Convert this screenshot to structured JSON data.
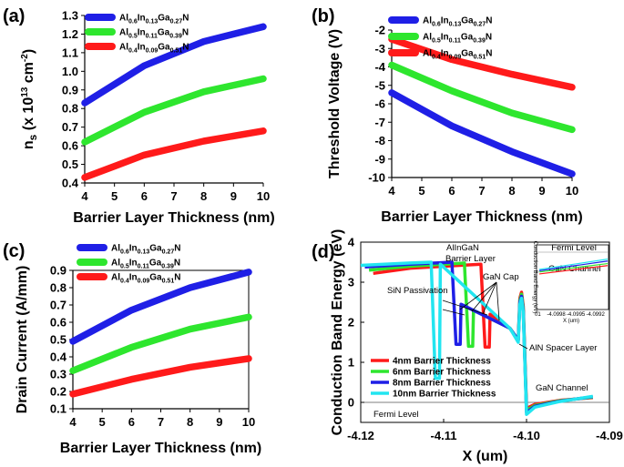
{
  "chart_data": [
    {
      "panel": "(a)",
      "type": "line",
      "xlabel": "Barrier Layer Thickness (nm)",
      "ylabel": "ns (x 10^13 cm^-2)",
      "ylabel_parts": {
        "a": "n",
        "sub": "s",
        "b": " (x 10",
        "sup": "13",
        "c": " cm",
        "sup2": "-2",
        "d": ")"
      },
      "x": [
        4,
        6,
        8,
        10
      ],
      "xlim": [
        4,
        10
      ],
      "ylim": [
        0.4,
        1.3
      ],
      "xticks": [
        "4",
        "5",
        "6",
        "7",
        "8",
        "9",
        "10"
      ],
      "yticks": [
        "0.4",
        "0.5",
        "0.6",
        "0.7",
        "0.8",
        "0.9",
        "1.0",
        "1.1",
        "1.2",
        "1.3"
      ],
      "series": [
        {
          "name": "Al0.6In0.13Ga0.27N",
          "label_parts": [
            "Al",
            "0.6",
            "In",
            "0.13",
            "Ga",
            "0.27",
            "N"
          ],
          "color": "#1f1fe6",
          "values": [
            0.83,
            1.03,
            1.16,
            1.24
          ]
        },
        {
          "name": "Al0.5In0.11Ga0.39N",
          "label_parts": [
            "Al",
            "0.5",
            "In",
            "0.11",
            "Ga",
            "0.39",
            "N"
          ],
          "color": "#2ee62e",
          "values": [
            0.62,
            0.78,
            0.89,
            0.96
          ]
        },
        {
          "name": "Al0.4In0.09Ga0.51N",
          "label_parts": [
            "Al",
            "0.4",
            "In",
            "0.09",
            "Ga",
            "0.51",
            "N"
          ],
          "color": "#ff1a1a",
          "values": [
            0.43,
            0.55,
            0.625,
            0.68
          ]
        }
      ]
    },
    {
      "panel": "(b)",
      "type": "line",
      "xlabel": "Barrier Layer Thickness (nm)",
      "ylabel": "Threshold Voltage (V)",
      "x": [
        4,
        6,
        8,
        10
      ],
      "xlim": [
        4,
        10
      ],
      "ylim": [
        -10,
        -2
      ],
      "xticks": [
        "4",
        "5",
        "6",
        "7",
        "8",
        "9",
        "10"
      ],
      "yticks": [
        "-10",
        "-9",
        "-8",
        "-7",
        "-6",
        "-5",
        "-4",
        "-3",
        "-2"
      ],
      "series": [
        {
          "name": "Al0.6In0.13Ga0.27N",
          "label_parts": [
            "Al",
            "0.6",
            "In",
            "0.13",
            "Ga",
            "0.27",
            "N"
          ],
          "color": "#1f1fe6",
          "values": [
            -5.4,
            -7.2,
            -8.6,
            -9.8
          ]
        },
        {
          "name": "Al0.5In0.11Ga0.39N",
          "label_parts": [
            "Al",
            "0.5",
            "In",
            "0.11",
            "Ga",
            "0.39",
            "N"
          ],
          "color": "#2ee62e",
          "values": [
            -3.9,
            -5.3,
            -6.5,
            -7.4
          ]
        },
        {
          "name": "Al0.4In0.09Ga0.51N",
          "label_parts": [
            "Al",
            "0.4",
            "In",
            "0.09",
            "Ga",
            "0.51",
            "N"
          ],
          "color": "#ff1a1a",
          "values": [
            -2.5,
            -3.6,
            -4.4,
            -5.1
          ]
        }
      ]
    },
    {
      "panel": "(c)",
      "type": "line",
      "xlabel": "Barrier Layer Thickness (nm)",
      "ylabel": "Drain Current (A/mm)",
      "x": [
        4,
        6,
        8,
        10
      ],
      "xlim": [
        4,
        10
      ],
      "ylim": [
        0.1,
        0.9
      ],
      "xticks": [
        "4",
        "5",
        "6",
        "7",
        "8",
        "9",
        "10"
      ],
      "yticks": [
        "0.1",
        "0.2",
        "0.3",
        "0.4",
        "0.5",
        "0.6",
        "0.7",
        "0.8",
        "0.9"
      ],
      "series": [
        {
          "name": "Al0.6In0.13Ga0.27N",
          "label_parts": [
            "Al",
            "0.6",
            "In",
            "0.13",
            "Ga",
            "0.27",
            "N"
          ],
          "color": "#1f1fe6",
          "values": [
            0.49,
            0.67,
            0.8,
            0.89
          ]
        },
        {
          "name": "Al0.5In0.11Ga0.39N",
          "label_parts": [
            "Al",
            "0.5",
            "In",
            "0.11",
            "Ga",
            "0.39",
            "N"
          ],
          "color": "#2ee62e",
          "values": [
            0.32,
            0.455,
            0.56,
            0.63
          ]
        },
        {
          "name": "Al0.4In0.09Ga0.51N",
          "label_parts": [
            "Al",
            "0.4",
            "In",
            "0.09",
            "Ga",
            "0.51",
            "N"
          ],
          "color": "#ff1a1a",
          "values": [
            0.185,
            0.27,
            0.34,
            0.39
          ]
        }
      ]
    },
    {
      "panel": "(d)",
      "type": "line",
      "xlabel": "X (um)",
      "ylabel": "Conduction Band Energy (eV)",
      "xlim": [
        -4.12,
        -4.09
      ],
      "ylim": [
        -0.5,
        4.0
      ],
      "xticks": [
        "-4.12",
        "-4.11",
        "-4.10",
        "-4.09"
      ],
      "xtick_values": [
        -4.12,
        -4.11,
        -4.1,
        -4.09
      ],
      "yticks": [
        "0",
        "1",
        "2",
        "3",
        "4"
      ],
      "series": [
        {
          "name": "4nm Barrier Thickness",
          "color": "#ff1a1a",
          "x": [
            -4.1185,
            -4.114,
            -4.1055,
            -4.105,
            -4.1045,
            -4.1044,
            -4.102,
            -4.101,
            -4.1008,
            -4.1006,
            -4.1004,
            -4.1,
            -4.099,
            -4.096,
            -4.092
          ],
          "y": [
            3.22,
            3.35,
            3.45,
            1.38,
            1.38,
            2.2,
            1.85,
            1.55,
            2.6,
            2.75,
            2.4,
            -0.15,
            -0.05,
            0.05,
            0.12
          ]
        },
        {
          "name": "6nm Barrier Thickness",
          "color": "#2ee62e",
          "x": [
            -4.119,
            -4.114,
            -4.1075,
            -4.107,
            -4.1065,
            -4.1064,
            -4.102,
            -4.101,
            -4.1008,
            -4.1006,
            -4.1004,
            -4.1,
            -4.099,
            -4.096,
            -4.092
          ],
          "y": [
            3.3,
            3.4,
            3.48,
            1.4,
            1.4,
            2.3,
            1.85,
            1.55,
            2.55,
            2.7,
            2.35,
            -0.2,
            -0.08,
            0.04,
            0.13
          ]
        },
        {
          "name": "8nm Barrier Thickness",
          "color": "#1f1fe6",
          "x": [
            -4.1195,
            -4.114,
            -4.109,
            -4.1085,
            -4.108,
            -4.1079,
            -4.102,
            -4.101,
            -4.1008,
            -4.1006,
            -4.1004,
            -4.1,
            -4.099,
            -4.096,
            -4.092
          ],
          "y": [
            3.38,
            3.45,
            3.5,
            1.45,
            1.45,
            2.45,
            1.85,
            1.55,
            2.5,
            2.65,
            2.3,
            -0.25,
            -0.1,
            0.03,
            0.14
          ]
        },
        {
          "name": "10nm Barrier Thickness",
          "color": "#22e5f0",
          "x": [
            -4.12,
            -4.114,
            -4.1115,
            -4.111,
            -4.1105,
            -4.1104,
            -4.102,
            -4.101,
            -4.1008,
            -4.1006,
            -4.1004,
            -4.1,
            -4.099,
            -4.096,
            -4.092
          ],
          "y": [
            3.42,
            3.48,
            3.5,
            0.6,
            0.6,
            3.45,
            1.85,
            1.5,
            2.45,
            2.6,
            2.25,
            -0.3,
            -0.12,
            0.02,
            0.15
          ]
        }
      ],
      "annotations": {
        "algan_1": "AlInGaN",
        "algan_2": "Barrier Layer",
        "gan_cap": "GaN Cap",
        "sin": "SiN Passivation",
        "aln": "AlN Spacer Layer",
        "gan_channel": "GaN Channel",
        "fermi": "Fermi Level"
      },
      "inset": {
        "title": "Fermi Level",
        "label": "GaN Channel",
        "ylabel": "Conduction Band Energy (eV)",
        "xlabel": "X (um)",
        "xticks": [
          "-4.0998",
          "-4.0995",
          "-4.0992"
        ],
        "xtick_values": [
          -4.0998,
          -4.0995,
          -4.0992
        ],
        "xtick_extra": "01",
        "xlim": [
          -4.1001,
          -4.099
        ],
        "lines": [
          {
            "color": "#22e5f0",
            "y0": 0.62,
            "y1": 0.78
          },
          {
            "color": "#1f1fe6",
            "y0": 0.6,
            "y1": 0.75
          },
          {
            "color": "#2ee62e",
            "y0": 0.58,
            "y1": 0.71
          },
          {
            "color": "#ff1a1a",
            "y0": 0.55,
            "y1": 0.68
          }
        ]
      }
    }
  ]
}
